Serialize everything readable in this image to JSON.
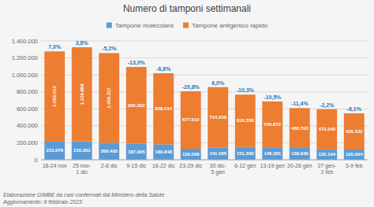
{
  "chart_data": {
    "type": "bar",
    "stacked": true,
    "title": "Numero di tamponi settimanali",
    "categories": [
      "18-24 nov",
      "25 nov-1 dic",
      "2-8 dic",
      "9-15 dic",
      "16-22 dic",
      "23-29 dic",
      "30 dic-5 gen",
      "6-12 gen",
      "13-19 gen",
      "20-26 gen",
      "27 gen-2 feb",
      "3-9 feb"
    ],
    "series": [
      {
        "name": "Tampone molecolare",
        "color": "#5b9bd5",
        "values": [
          213976,
          216301,
          200405,
          187905,
          180848,
          129508,
          141565,
          151360,
          146361,
          139939,
          122194,
          120694
        ],
        "value_labels": [
          "213.976",
          "216.301",
          "200.405",
          "187.905",
          "180.848",
          "129.508",
          "141.565",
          "151.360",
          "146.361",
          "139.939",
          "122.194",
          "120.694"
        ]
      },
      {
        "name": "Tampone antigenico rapido",
        "color": "#ed7d31",
        "values": [
          1063010,
          1108868,
          1056317,
          905302,
          838514,
          677610,
          714258,
          616358,
          540872,
          468793,
          473345,
          426332
        ],
        "value_labels": [
          "1.063.010",
          "1.108.868",
          "1.056.317",
          "905.302",
          "838.514",
          "677.610",
          "714.258",
          "616.358",
          "540.872",
          "468.793",
          "473.345",
          "426.332"
        ]
      }
    ],
    "annotations": [
      "7,0%",
      "3,8%",
      "-5,2%",
      "-13,0%",
      "-6,8%",
      "-20,8%",
      "6,0%",
      "-10,3%",
      "-10,5%",
      "-11,4%",
      "-2,2%",
      "-8,1%"
    ],
    "footer": [
      "Elaborazione GIMBE da casi confermati dal Ministero della Salute",
      "Aggiornamento: 9 febbraio 2023"
    ],
    "ylim": [
      0,
      1400000
    ],
    "yticks": [
      0,
      {
        "value": 200000,
        "label": "200.000"
      },
      {
        "value": 400000,
        "label": "400.000"
      },
      {
        "value": 600000,
        "label": "600.000"
      },
      {
        "value": 800000,
        "label": "800.000"
      },
      {
        "value": 1000000,
        "label": "1.000.000"
      },
      {
        "value": 1200000,
        "label": "1.200.000"
      },
      {
        "value": 1400000,
        "label": "1.400.000"
      }
    ],
    "grid": true,
    "legend": "top",
    "data_labels": true
  }
}
